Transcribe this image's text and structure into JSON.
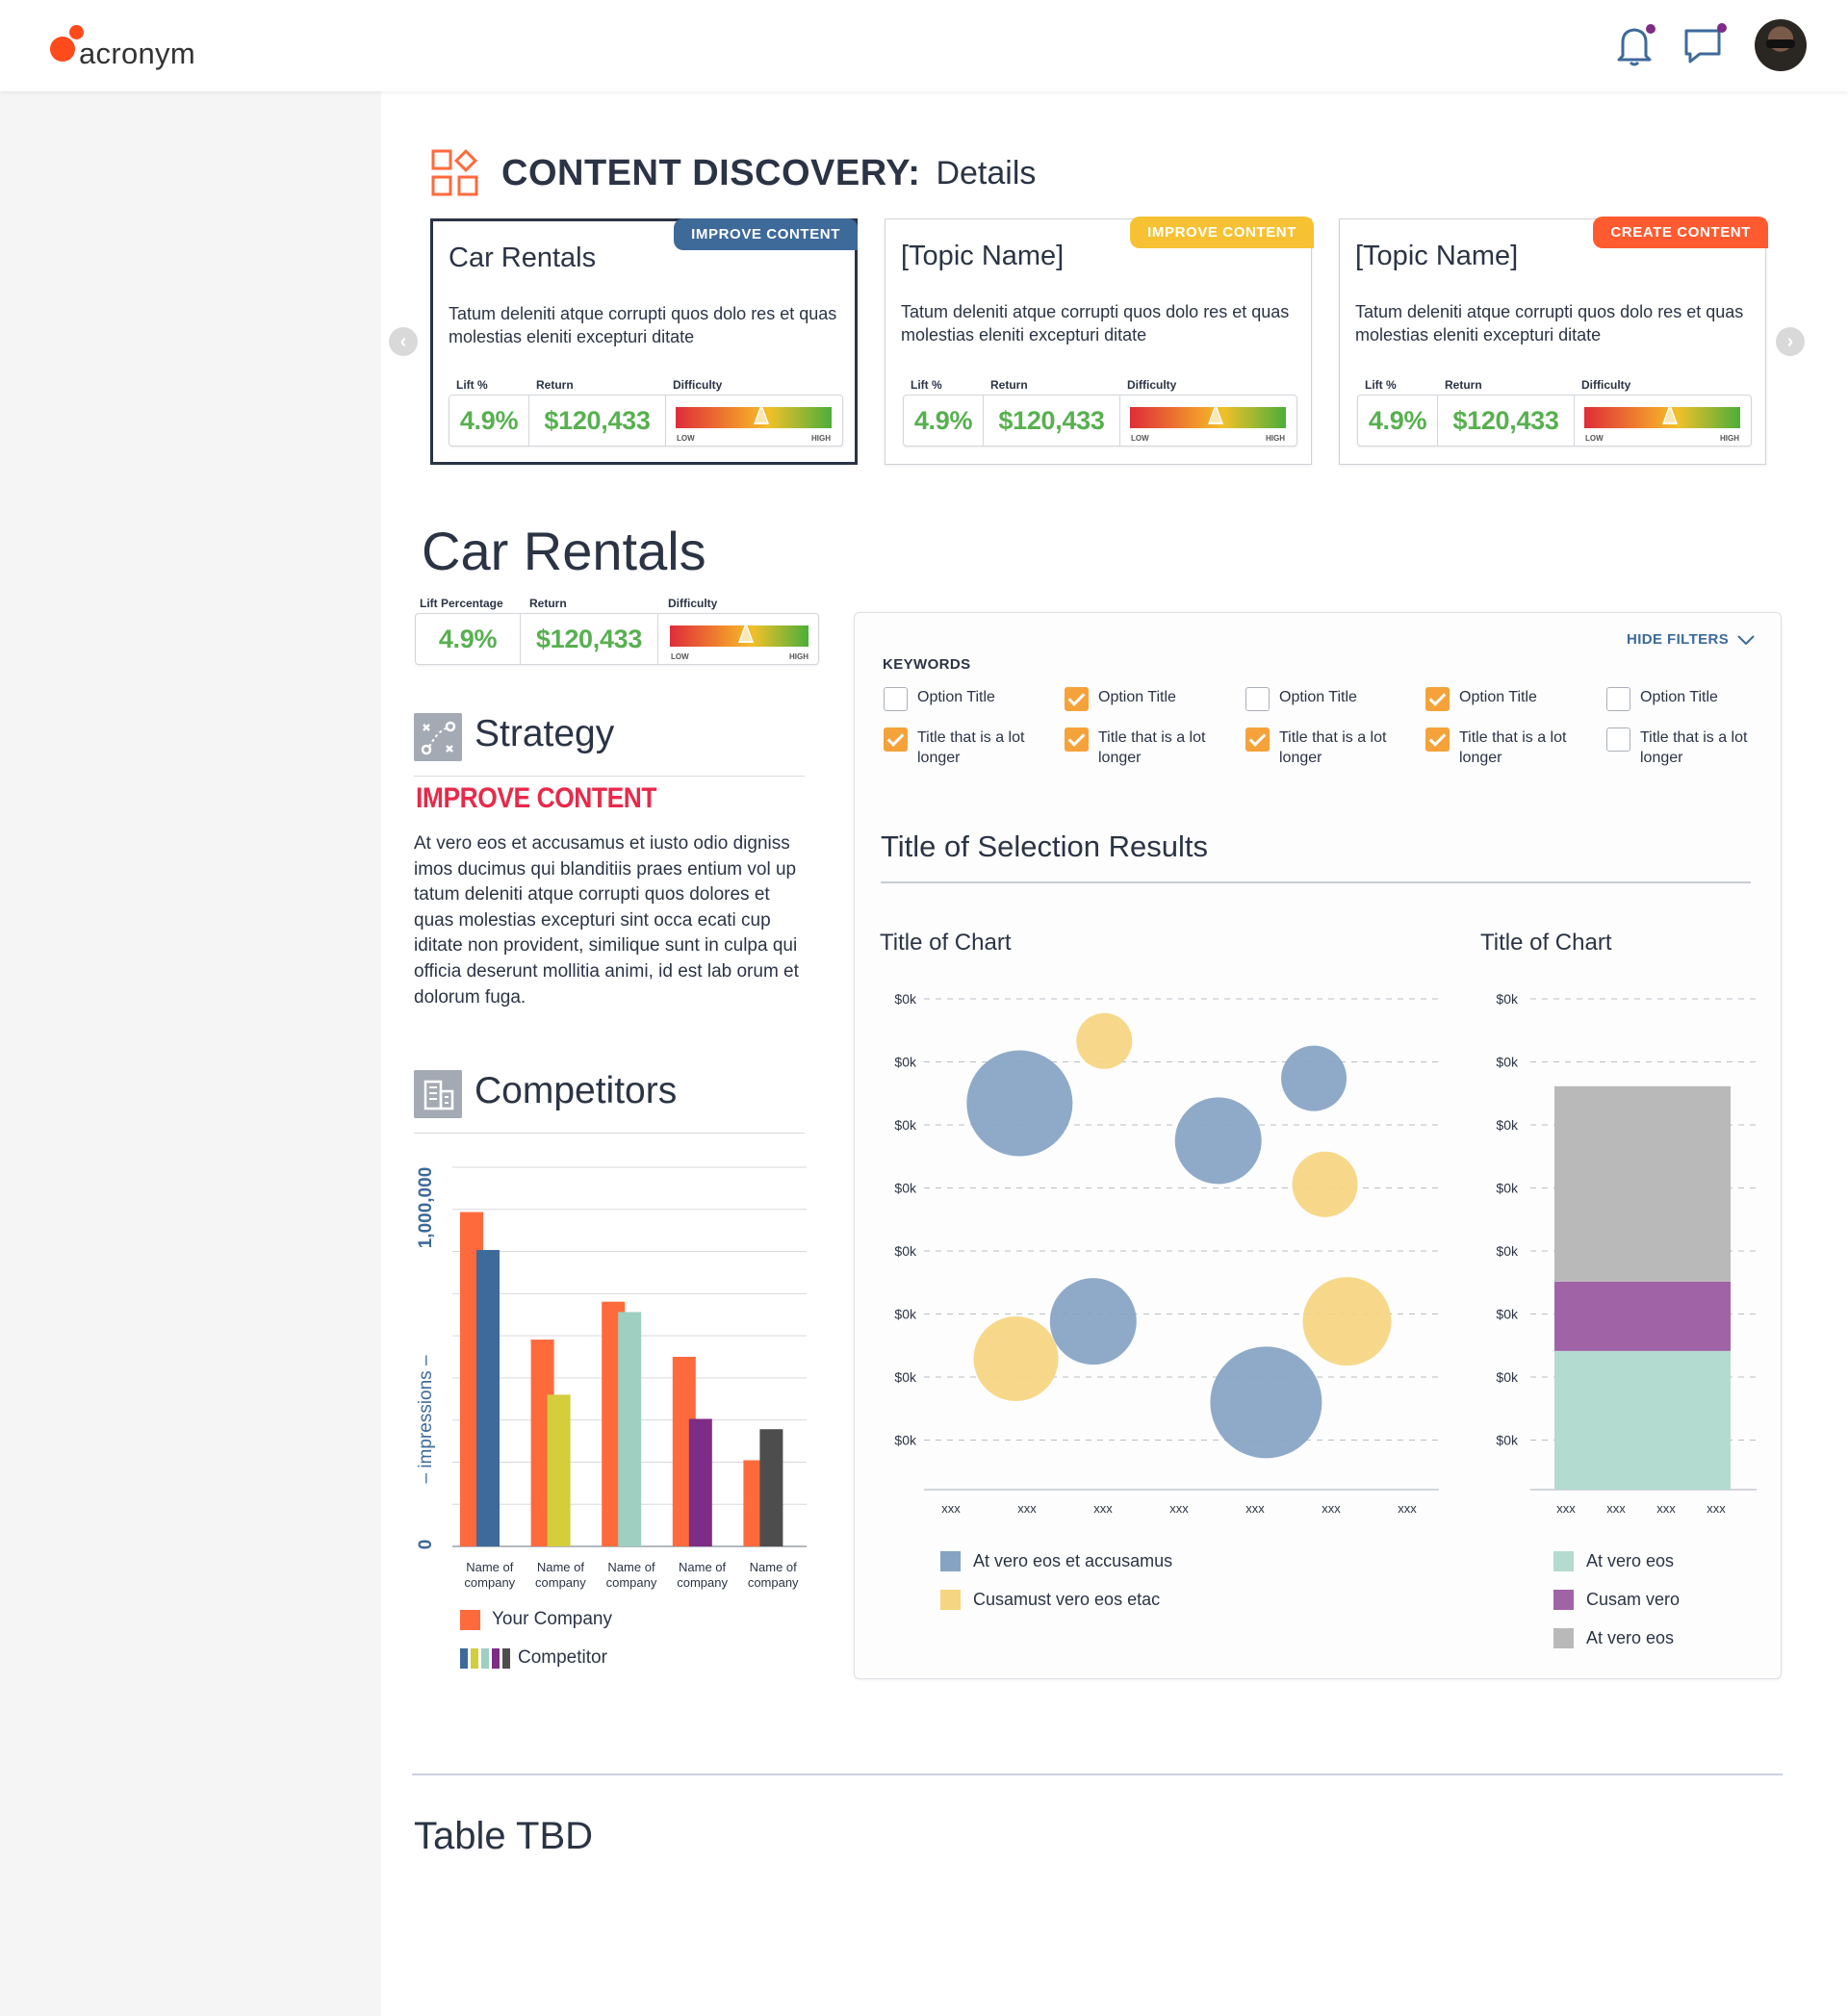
{
  "header": {
    "logo_text": "acronym",
    "icons": [
      "bell-icon",
      "chat-icon"
    ],
    "notification_color": "#7d2d85"
  },
  "page_title": {
    "main": "CONTENT DISCOVERY:",
    "sub": "Details",
    "icon": "grid-shapes-icon"
  },
  "topic_cards": [
    {
      "badge": "IMPROVE CONTENT",
      "badge_color": "#3e6a9a",
      "title": "Car Rentals",
      "description": "Tatum deleniti atque corrupti quos dolo res et quas molestias eleniti excepturi ditate",
      "lift_label": "Lift %",
      "return_label": "Return",
      "difficulty_label": "Difficulty",
      "lift": "4.9%",
      "return": "$120,433",
      "low": "LOW",
      "high": "HIGH",
      "difficulty_level": 0.55
    },
    {
      "badge": "IMPROVE CONTENT",
      "badge_color": "#f6c233",
      "title": "[Topic Name]",
      "description": "Tatum deleniti atque corrupti quos dolo res et quas molestias eleniti excepturi ditate",
      "lift_label": "Lift %",
      "return_label": "Return",
      "difficulty_label": "Difficulty",
      "lift": "4.9%",
      "return": "$120,433",
      "low": "LOW",
      "high": "HIGH",
      "difficulty_level": 0.55
    },
    {
      "badge": "CREATE CONTENT",
      "badge_color": "#ff5a30",
      "title": "[Topic Name]",
      "description": "Tatum deleniti atque corrupti quos dolo res et quas molestias eleniti excepturi ditate",
      "lift_label": "Lift %",
      "return_label": "Return",
      "difficulty_label": "Difficulty",
      "lift": "4.9%",
      "return": "$120,433",
      "low": "LOW",
      "high": "HIGH",
      "difficulty_level": 0.55
    }
  ],
  "detail": {
    "title": "Car Rentals",
    "lift_label": "Lift Percentage",
    "return_label": "Return",
    "difficulty_label": "Difficulty",
    "lift": "4.9%",
    "return": "$120,433",
    "low": "LOW",
    "high": "HIGH",
    "difficulty_level": 0.55
  },
  "strategy": {
    "heading": "Strategy",
    "label": "IMPROVE CONTENT",
    "text": "At vero eos et accusamus et iusto odio digniss imos ducimus qui blanditiis praes entium vol up tatum deleniti atque corrupti quos dolores et quas molestias excepturi sint occa ecati cup iditate non provident, similique sunt in culpa qui officia deserunt mollitia animi, id est lab orum et dolorum fuga."
  },
  "competitors": {
    "heading": "Competitors",
    "legend_your_company": "Your Company",
    "legend_competitor": "Competitor",
    "your_color": "#ff6a3d",
    "competitor_colors": [
      "#3e6a9a",
      "#d4cd3c",
      "#9ecfc0",
      "#7d2d85",
      "#4d4d4d"
    ]
  },
  "filters": {
    "hide_label": "HIDE FILTERS",
    "keywords_label": "KEYWORDS",
    "options": [
      {
        "label": "Option Title",
        "checked": false
      },
      {
        "label": "Option Title",
        "checked": true
      },
      {
        "label": "Option Title",
        "checked": false
      },
      {
        "label": "Option Title",
        "checked": true
      },
      {
        "label": "Option Title",
        "checked": false
      },
      {
        "label": "Title that is a lot longer",
        "checked": true
      },
      {
        "label": "Title that is a lot longer",
        "checked": true
      },
      {
        "label": "Title that is a lot longer",
        "checked": true
      },
      {
        "label": "Title that is a lot longer",
        "checked": true
      },
      {
        "label": "Title that is a lot longer",
        "checked": false
      }
    ]
  },
  "results": {
    "title": "Title of Selection Results"
  },
  "chart_data": [
    {
      "type": "bar",
      "ylabel": "– impressions –",
      "ytick_labels": [
        "0",
        "1,000,000"
      ],
      "ylim": [
        0,
        1100000
      ],
      "categories": [
        "Name of company",
        "Name of company",
        "Name of company",
        "Name of company",
        "Name of company"
      ],
      "series": [
        {
          "name": "Your Company",
          "values": [
            970000,
            600000,
            710000,
            550000,
            250000
          ]
        },
        {
          "name": "Competitor",
          "values": [
            860000,
            440000,
            680000,
            370000,
            340000
          ]
        }
      ],
      "grid": true
    },
    {
      "type": "scatter",
      "title": "Title of Chart",
      "ytick_labels": [
        "$0k",
        "$0k",
        "$0k",
        "$0k",
        "$0k",
        "$0k",
        "$0k",
        "$0k"
      ],
      "xtick_labels": [
        "xxx",
        "xxx",
        "xxx",
        "xxx",
        "xxx",
        "xxx",
        "xxx"
      ],
      "xlim": [
        0,
        7
      ],
      "ylim": [
        0,
        8
      ],
      "grid": true,
      "series": [
        {
          "name": "At vero eos et accusamus",
          "color": "#86a3c3",
          "points": [
            {
              "x": 1.3,
              "y": 6.2,
              "r": 55
            },
            {
              "x": 4.0,
              "y": 5.6,
              "r": 45
            },
            {
              "x": 5.3,
              "y": 6.6,
              "r": 34
            },
            {
              "x": 2.3,
              "y": 2.7,
              "r": 45
            },
            {
              "x": 4.65,
              "y": 1.4,
              "r": 58
            }
          ]
        },
        {
          "name": "Cusamust vero eos etac",
          "color": "#f6d580",
          "points": [
            {
              "x": 2.45,
              "y": 7.2,
              "r": 29
            },
            {
              "x": 5.45,
              "y": 4.9,
              "r": 34
            },
            {
              "x": 1.25,
              "y": 2.1,
              "r": 44
            },
            {
              "x": 5.75,
              "y": 2.7,
              "r": 46
            }
          ]
        }
      ]
    },
    {
      "type": "bar",
      "stacked": true,
      "title": "Title of Chart",
      "ytick_labels": [
        "$0k",
        "$0k",
        "$0k",
        "$0k",
        "$0k",
        "$0k",
        "$0k",
        "$0k"
      ],
      "xtick_labels": [
        "xxx",
        "xxx",
        "xxx",
        "xxx"
      ],
      "ylim": [
        0,
        8
      ],
      "grid": true,
      "series": [
        {
          "name": "At vero eos",
          "color": "#b4dbcf",
          "values": [
            2.2
          ]
        },
        {
          "name": "Cusam vero",
          "color": "#a063a6",
          "values": [
            1.1
          ]
        },
        {
          "name": "At vero eos",
          "color": "#b9b9b9",
          "values": [
            3.1
          ]
        }
      ]
    }
  ],
  "table": {
    "title": "Table TBD"
  }
}
